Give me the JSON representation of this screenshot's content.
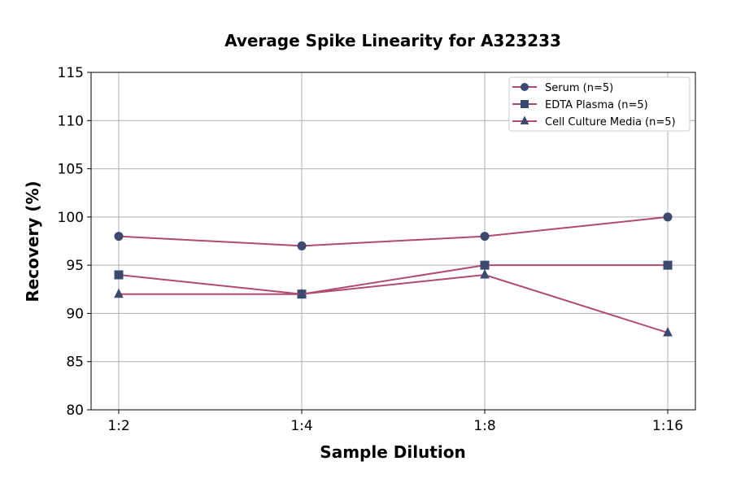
{
  "chart_data": {
    "type": "line",
    "title": "Average Spike Linearity for A323233",
    "xlabel": "Sample Dilution",
    "ylabel": "Recovery (%)",
    "categories": [
      "1:2",
      "1:4",
      "1:8",
      "1:16"
    ],
    "ylim": [
      80,
      115
    ],
    "yticks": [
      80,
      85,
      90,
      95,
      100,
      105,
      110,
      115
    ],
    "grid": true,
    "legend_position": "top-right",
    "line_color": "#b04a72",
    "marker_color": "#3b4a6e",
    "series": [
      {
        "name": "Serum (n=5)",
        "marker": "circle",
        "values": [
          98,
          97,
          98,
          100
        ]
      },
      {
        "name": "EDTA Plasma (n=5)",
        "marker": "square",
        "values": [
          94,
          92,
          95,
          95
        ]
      },
      {
        "name": "Cell Culture Media (n=5)",
        "marker": "triangle",
        "values": [
          92,
          92,
          94,
          88
        ]
      }
    ]
  }
}
